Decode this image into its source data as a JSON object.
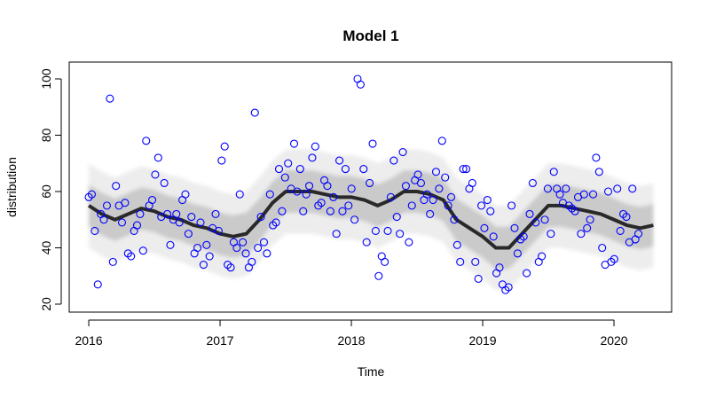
{
  "chart_data": {
    "type": "scatter",
    "title": "Model 1",
    "xlabel": "Time",
    "ylabel": "distribution",
    "xlim": [
      2015.851,
      2020.439
    ],
    "ylim": [
      17.17,
      105.98
    ],
    "xticks": [
      2016,
      2017,
      2018,
      2019,
      2020
    ],
    "yticks": [
      20,
      40,
      60,
      80,
      100
    ],
    "color": "blue",
    "x": [
      2016.0,
      2016.023,
      2016.046,
      2016.069,
      2016.092,
      2016.115,
      2016.138,
      2016.161,
      2016.184,
      2016.207,
      2016.23,
      2016.253,
      2016.276,
      2016.299,
      2016.322,
      2016.345,
      2016.368,
      2016.391,
      2016.414,
      2016.437,
      2016.46,
      2016.483,
      2016.506,
      2016.529,
      2016.552,
      2016.575,
      2016.598,
      2016.621,
      2016.644,
      2016.667,
      2016.69,
      2016.713,
      2016.736,
      2016.759,
      2016.782,
      2016.805,
      2016.828,
      2016.851,
      2016.874,
      2016.897,
      2016.92,
      2016.943,
      2016.966,
      2016.989,
      2017.012,
      2017.035,
      2017.058,
      2017.081,
      2017.104,
      2017.127,
      2017.15,
      2017.173,
      2017.196,
      2017.219,
      2017.242,
      2017.265,
      2017.288,
      2017.311,
      2017.334,
      2017.357,
      2017.38,
      2017.403,
      2017.426,
      2017.449,
      2017.472,
      2017.495,
      2017.518,
      2017.541,
      2017.564,
      2017.587,
      2017.61,
      2017.633,
      2017.656,
      2017.679,
      2017.702,
      2017.725,
      2017.748,
      2017.771,
      2017.794,
      2017.817,
      2017.84,
      2017.863,
      2017.886,
      2017.909,
      2017.932,
      2017.955,
      2017.978,
      2018.001,
      2018.024,
      2018.047,
      2018.07,
      2018.093,
      2018.116,
      2018.139,
      2018.162,
      2018.185,
      2018.208,
      2018.231,
      2018.254,
      2018.277,
      2018.3,
      2018.323,
      2018.346,
      2018.369,
      2018.392,
      2018.415,
      2018.438,
      2018.461,
      2018.484,
      2018.507,
      2018.53,
      2018.553,
      2018.576,
      2018.599,
      2018.622,
      2018.645,
      2018.668,
      2018.691,
      2018.714,
      2018.737,
      2018.76,
      2018.783,
      2018.806,
      2018.829,
      2018.852,
      2018.875,
      2018.898,
      2018.921,
      2018.944,
      2018.967,
      2018.99,
      2019.013,
      2019.036,
      2019.059,
      2019.082,
      2019.105,
      2019.128,
      2019.151,
      2019.174,
      2019.197,
      2019.22,
      2019.243,
      2019.266,
      2019.289,
      2019.312,
      2019.335,
      2019.358,
      2019.381,
      2019.404,
      2019.427,
      2019.45,
      2019.473,
      2019.496,
      2019.519,
      2019.542,
      2019.565,
      2019.588,
      2019.611,
      2019.634,
      2019.657,
      2019.68,
      2019.703,
      2019.726,
      2019.749,
      2019.772,
      2019.795,
      2019.818,
      2019.841,
      2019.864,
      2019.887,
      2019.91,
      2019.933,
      2019.956,
      2019.979,
      2020.002,
      2020.025,
      2020.048,
      2020.071,
      2020.094,
      2020.117,
      2020.14,
      2020.163,
      2020.186
    ],
    "values": [
      58,
      59,
      46,
      27,
      52,
      50,
      55,
      93,
      35,
      62,
      55,
      49,
      56,
      38,
      37,
      46,
      48,
      52,
      39,
      78,
      55,
      57,
      66,
      72,
      51,
      63,
      52,
      41,
      50,
      52,
      49,
      57,
      59,
      45,
      51,
      38,
      40,
      49,
      34,
      41,
      37,
      47,
      52,
      46,
      71,
      76,
      34,
      33,
      42,
      40,
      59,
      42,
      38,
      33,
      35,
      88,
      40,
      51,
      42,
      38,
      59,
      48,
      49,
      68,
      53,
      65,
      70,
      61,
      77,
      60,
      68,
      53,
      59,
      62,
      72,
      76,
      55,
      56,
      64,
      62,
      53,
      58,
      45,
      71,
      53,
      68,
      55,
      61,
      50,
      100,
      98,
      68,
      42,
      63,
      77,
      46,
      30,
      37,
      35,
      46,
      58,
      71,
      51,
      45,
      74,
      62,
      42,
      55,
      64,
      66,
      63,
      57,
      59,
      52,
      57,
      67,
      61,
      78,
      65,
      55,
      58,
      50,
      41,
      35,
      68,
      68,
      61,
      63,
      35,
      29,
      55,
      47,
      57,
      53,
      44,
      31,
      33,
      27,
      25,
      26,
      55,
      47,
      38,
      43,
      44,
      31,
      52,
      63,
      49,
      35,
      37,
      50,
      61,
      45,
      67,
      61,
      59,
      56,
      61,
      55,
      54,
      53,
      58,
      45,
      59,
      47,
      50,
      59,
      72,
      67,
      40,
      34,
      60,
      35,
      36,
      61,
      46,
      52,
      51,
      42,
      61,
      43,
      45
    ],
    "fan": {
      "color": "#000000",
      "x": [
        2016.0,
        2016.1,
        2016.2,
        2016.3,
        2016.4,
        2016.5,
        2016.6,
        2016.7,
        2016.8,
        2016.9,
        2017.0,
        2017.1,
        2017.2,
        2017.3,
        2017.4,
        2017.5,
        2017.6,
        2017.7,
        2017.8,
        2017.9,
        2018.0,
        2018.1,
        2018.2,
        2018.3,
        2018.4,
        2018.5,
        2018.6,
        2018.7,
        2018.8,
        2018.9,
        2019.0,
        2019.1,
        2019.2,
        2019.3,
        2019.4,
        2019.5,
        2019.6,
        2019.7,
        2019.8,
        2019.9,
        2020.0,
        2020.1,
        2020.2,
        2020.3
      ],
      "values": [
        55,
        52,
        50,
        52,
        54,
        53,
        51,
        50,
        48,
        47,
        45,
        44,
        45,
        50,
        56,
        60,
        60,
        60,
        59,
        58,
        58,
        57,
        55,
        57,
        60,
        60,
        59,
        57,
        50,
        47,
        44,
        40,
        40,
        45,
        50,
        55,
        55,
        54,
        53,
        52,
        50,
        48,
        47,
        48
      ],
      "lower": [
        40,
        37,
        35,
        37,
        39,
        38,
        36,
        35,
        33,
        32,
        30,
        29,
        30,
        35,
        41,
        45,
        45,
        45,
        44,
        43,
        43,
        42,
        40,
        42,
        45,
        45,
        44,
        42,
        35,
        32,
        29,
        25,
        25,
        30,
        35,
        40,
        40,
        39,
        38,
        37,
        35,
        33,
        32,
        33
      ],
      "upper": [
        70,
        67,
        65,
        67,
        69,
        68,
        66,
        65,
        63,
        62,
        60,
        59,
        60,
        65,
        71,
        75,
        75,
        75,
        74,
        73,
        73,
        72,
        70,
        72,
        75,
        75,
        74,
        72,
        65,
        62,
        59,
        55,
        55,
        60,
        65,
        70,
        70,
        69,
        68,
        67,
        65,
        63,
        62,
        63
      ]
    }
  }
}
